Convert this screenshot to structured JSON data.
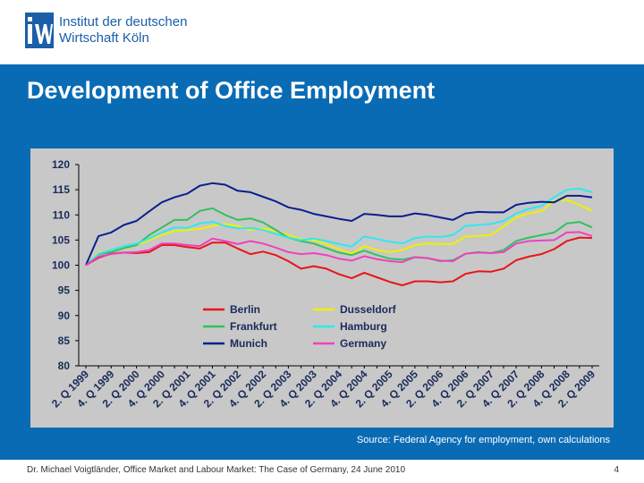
{
  "header": {
    "logo_line1": "Institut der deutschen",
    "logo_line2": "Wirtschaft Köln"
  },
  "slide": {
    "title": "Development of Office Employment",
    "source": "Source: Federal Agency for employment, own calculations",
    "footer": "Dr. Michael Voigtländer, Office Market and Labour Market: The Case of Germany, 24 June 2010",
    "page_number": "4"
  },
  "colors": {
    "Berlin": "#e8151b",
    "Dusseldorf": "#f0f000",
    "Frankfurt": "#33c060",
    "Hamburg": "#30e8f0",
    "Munich": "#0a1f8f",
    "Germany": "#f040c0"
  },
  "chart_data": {
    "type": "line",
    "title": "",
    "xlabel": "",
    "ylabel": "",
    "ylim": [
      80,
      120
    ],
    "yticks": [
      80,
      85,
      90,
      95,
      100,
      105,
      110,
      115,
      120
    ],
    "x_tick_labels": [
      "2. Q 1999",
      "4. Q 1999",
      "2. Q 2000",
      "4. Q 2000",
      "2. Q 2001",
      "4. Q 2001",
      "2. Q 2002",
      "4. Q 2002",
      "2. Q 2003",
      "4. Q 2003",
      "2. Q 2004",
      "4. Q 2004",
      "2. Q 2005",
      "4. Q 2005",
      "2. Q 2006",
      "4. Q 2006",
      "2. Q 2007",
      "4. Q 2007",
      "2. Q 2008",
      "4. Q 2008",
      "2. Q 2009"
    ],
    "x_count": 41,
    "legend": [
      "Berlin",
      "Dusseldorf",
      "Frankfurt",
      "Hamburg",
      "Munich",
      "Germany"
    ],
    "series": [
      {
        "name": "Berlin",
        "values": [
          100,
          101.5,
          102.3,
          102.5,
          102.4,
          102.6,
          104.0,
          104.0,
          103.6,
          103.3,
          104.5,
          104.5,
          103.3,
          102.2,
          102.7,
          102.0,
          100.8,
          99.3,
          99.8,
          99.3,
          98.2,
          97.4,
          98.5,
          97.6,
          96.7,
          96.0,
          96.8,
          96.8,
          96.6,
          96.8,
          98.3,
          98.8,
          98.7,
          99.3,
          101.0,
          101.7,
          102.2,
          103.2,
          104.8,
          105.5,
          105.4
        ]
      },
      {
        "name": "Dusseldorf",
        "values": [
          100,
          102.5,
          102.8,
          103.3,
          104.0,
          105.0,
          106.0,
          106.8,
          107.0,
          107.2,
          107.8,
          108.2,
          107.8,
          107.0,
          107.3,
          106.8,
          106.0,
          105.2,
          105.0,
          104.2,
          103.2,
          102.3,
          103.8,
          103.0,
          102.6,
          103.0,
          104.0,
          104.3,
          104.2,
          104.2,
          105.7,
          105.8,
          106.0,
          107.7,
          109.5,
          110.3,
          110.8,
          112.8,
          113.0,
          112.0,
          110.8
        ]
      },
      {
        "name": "Frankfurt",
        "values": [
          100,
          102.2,
          102.6,
          103.4,
          104.0,
          106.0,
          107.5,
          109.0,
          109.0,
          110.8,
          111.3,
          110.0,
          109.0,
          109.3,
          108.5,
          107.0,
          105.5,
          104.8,
          104.3,
          103.4,
          102.5,
          102.0,
          102.9,
          102.0,
          101.3,
          101.1,
          101.6,
          101.4,
          100.8,
          101.0,
          102.3,
          102.6,
          102.4,
          103.0,
          104.8,
          105.5,
          106.0,
          106.5,
          108.3,
          108.6,
          107.5
        ]
      },
      {
        "name": "Hamburg",
        "values": [
          100,
          102.3,
          103.0,
          103.8,
          104.3,
          105.3,
          106.5,
          107.5,
          107.4,
          108.3,
          108.6,
          107.8,
          107.3,
          107.4,
          107.0,
          106.2,
          105.5,
          105.0,
          105.3,
          104.8,
          104.2,
          103.7,
          105.7,
          105.2,
          104.7,
          104.3,
          105.4,
          105.7,
          105.6,
          106.0,
          107.8,
          108.0,
          108.2,
          108.8,
          110.3,
          111.2,
          111.8,
          113.5,
          115.0,
          115.2,
          114.5
        ]
      },
      {
        "name": "Munich",
        "values": [
          100,
          105.8,
          106.5,
          108.0,
          108.8,
          110.7,
          112.5,
          113.5,
          114.2,
          115.8,
          116.3,
          116.0,
          114.8,
          114.5,
          113.6,
          112.7,
          111.5,
          111.0,
          110.2,
          109.7,
          109.2,
          108.8,
          110.2,
          110.0,
          109.7,
          109.7,
          110.3,
          110.0,
          109.5,
          109.0,
          110.3,
          110.6,
          110.5,
          110.5,
          112.0,
          112.4,
          112.6,
          112.5,
          113.8,
          113.8,
          113.5
        ]
      },
      {
        "name": "Germany",
        "values": [
          100,
          101.7,
          102.2,
          102.5,
          102.6,
          103.0,
          104.3,
          104.3,
          104.0,
          103.8,
          105.3,
          104.8,
          104.2,
          104.8,
          104.3,
          103.5,
          102.6,
          102.2,
          102.4,
          102.0,
          101.3,
          100.9,
          101.8,
          101.2,
          100.8,
          100.6,
          101.6,
          101.4,
          100.9,
          100.8,
          102.3,
          102.5,
          102.4,
          102.6,
          104.3,
          104.8,
          104.9,
          105.0,
          106.5,
          106.6,
          105.8
        ]
      }
    ]
  }
}
